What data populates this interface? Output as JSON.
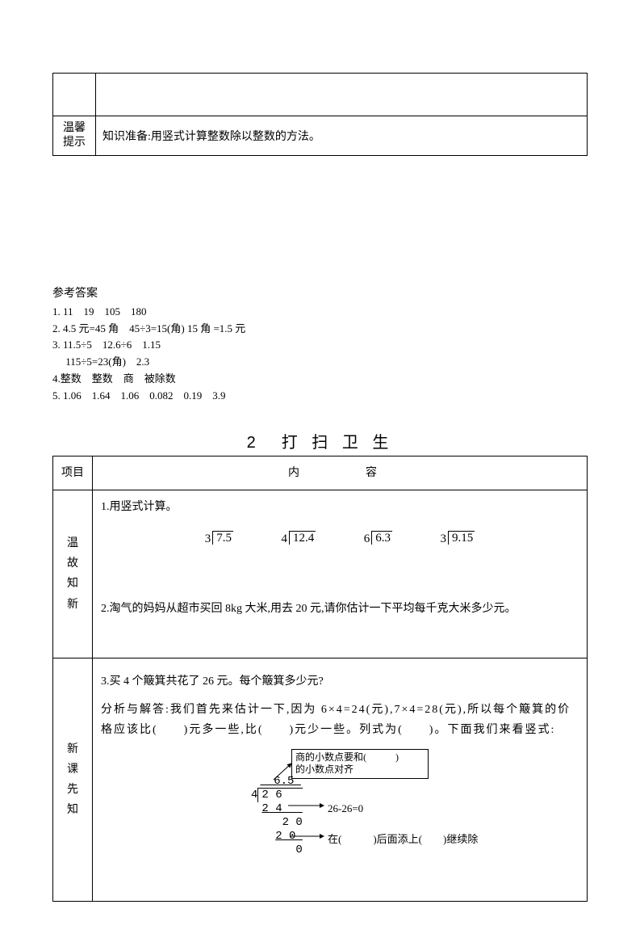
{
  "topTable": {
    "label": "温馨提示",
    "text": "知识准备:用竖式计算整数除以整数的方法。"
  },
  "answers": {
    "heading": "参考答案",
    "lines": [
      "1. 11　19　105　180",
      "2. 4.5 元=45 角　45÷3=15(角) 15 角 =1.5 元",
      "3. 11.5÷5　12.6÷6　1.15",
      "　 115÷5=23(角)　2.3",
      "4.整数　整数　商　被除数",
      "5. 1.06　1.64　1.06　0.082　0.19　3.9"
    ]
  },
  "section": {
    "title": "2　打 扫 卫 生",
    "header": {
      "col1": "项目",
      "col2": "内　　容"
    },
    "row1": {
      "label": "温故知新",
      "q1": "1.用竖式计算。",
      "divs": [
        {
          "divisor": "3",
          "dividend": "7.5"
        },
        {
          "divisor": "4",
          "dividend": "12.4"
        },
        {
          "divisor": "6",
          "dividend": "6.3"
        },
        {
          "divisor": "3",
          "dividend": "9.15"
        }
      ],
      "q2": "2.淘气的妈妈从超市买回 8kg 大米,用去 20 元,请你估计一下平均每千克大米多少元。"
    },
    "row2": {
      "label": "新课先知",
      "q3": "3.买 4 个簸箕共花了 26 元。每个簸箕多少元?",
      "analysis": "分析与解答:我们首先来估计一下,因为 6×4=24(元),7×4=28(元),所以每个簸箕的价格应该比(　　)元多一些,比(　　)元少一些。列式为(　　)。下面我们来看竖式:",
      "boxText1": "商的小数点要和(　　　)",
      "boxText2": "的小数点对齐",
      "annot_mid": "26-26=0",
      "annot_right": "在(　　　)后面添上(　　)继续除"
    }
  }
}
